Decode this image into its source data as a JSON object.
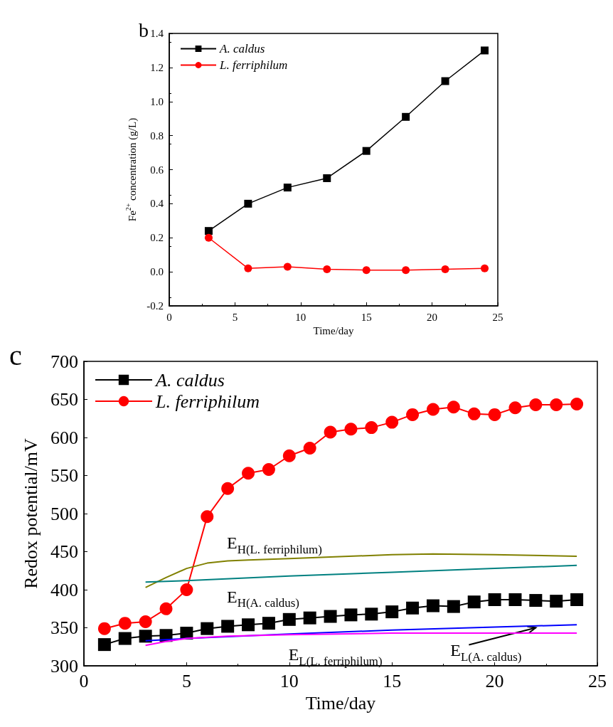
{
  "chart_data": [
    {
      "type": "line",
      "title": "b",
      "xlabel": "Time/day",
      "ylabel": "Fe$^{2+}$ concentration (g/L)",
      "x": [
        3,
        6,
        9,
        12,
        15,
        18,
        21,
        24
      ],
      "xlim": [
        0,
        25
      ],
      "xticks": [
        0,
        5,
        10,
        15,
        20,
        25
      ],
      "ylim": [
        -0.2,
        1.4
      ],
      "yticks": [
        -0.2,
        {
          "value": 0,
          "label": "0.0"
        },
        0.2,
        0.4,
        0.6,
        0.8,
        {
          "value": 1,
          "label": "1.0"
        },
        1.2,
        1.4
      ],
      "legend": "top left",
      "grid": false,
      "series": [
        {
          "name": "A. caldus",
          "color": "#000000",
          "marker": "square",
          "values": [
            0.24,
            0.4,
            0.495,
            0.55,
            0.71,
            0.91,
            1.12,
            1.3
          ]
        },
        {
          "name": "L. ferriphilum",
          "color": "#ff0000",
          "marker": "circle",
          "values": [
            0.2,
            0.02,
            0.03,
            0.015,
            0.01,
            0.01,
            0.015,
            0.02
          ]
        }
      ]
    },
    {
      "type": "line",
      "title": "c",
      "xlabel": "Time/day",
      "ylabel": "Redox potential/mV",
      "x": [
        1,
        2,
        3,
        4,
        5,
        6,
        7,
        8,
        9,
        10,
        11,
        12,
        13,
        14,
        15,
        16,
        17,
        18,
        19,
        20,
        21,
        22,
        23,
        24
      ],
      "xlim": [
        0,
        25
      ],
      "xticks": [
        0,
        5,
        10,
        15,
        20,
        25
      ],
      "ylim": [
        300,
        700
      ],
      "yticks": [
        300,
        350,
        400,
        450,
        500,
        550,
        600,
        650,
        700
      ],
      "legend": "top left",
      "grid": false,
      "series": [
        {
          "name": "A. caldus",
          "color": "#000000",
          "marker": "square",
          "values": [
            328,
            336,
            339,
            340,
            343,
            349,
            352,
            354,
            356,
            361,
            363,
            365,
            367,
            368,
            371,
            376,
            379,
            378,
            384,
            387,
            387,
            386,
            385,
            387
          ]
        },
        {
          "name": "L. ferriphilum",
          "color": "#ff0000",
          "marker": "circle",
          "values": [
            349,
            356,
            358,
            375,
            400,
            496,
            533,
            553,
            558,
            576,
            586,
            607,
            611,
            613,
            620,
            630,
            637,
            640,
            631,
            630,
            639,
            643,
            643,
            644
          ]
        },
        {
          "color": "#808000",
          "marker": "none",
          "x": [
            3,
            4,
            5,
            6,
            7,
            8,
            10,
            12,
            15,
            17,
            20,
            24
          ],
          "values": [
            403,
            416,
            428,
            435,
            438,
            439,
            441,
            443,
            446,
            447,
            446,
            444
          ]
        },
        {
          "color": "#008080",
          "marker": "none",
          "x": [
            3,
            5,
            10,
            15,
            20,
            24
          ],
          "values": [
            410,
            412,
            418,
            423,
            428,
            432
          ]
        },
        {
          "color": "#0000ff",
          "marker": "none",
          "x": [
            3,
            5,
            10,
            15,
            20,
            24
          ],
          "values": [
            333,
            336,
            342,
            347,
            351,
            354
          ]
        },
        {
          "color": "#ff00ff",
          "marker": "none",
          "x": [
            3,
            4,
            5,
            7,
            10,
            15,
            24
          ],
          "values": [
            327,
            332,
            336,
            339,
            341,
            343,
            343
          ]
        }
      ],
      "annotations": [
        {
          "text": "E$_{H(L. ferriphilum)}$",
          "x": 8,
          "y": 439
        },
        {
          "text": "E$_{H(A. caldus)}$",
          "x": 8,
          "y": 417
        },
        {
          "text": "E$_{L(L. ferriphilum)}$",
          "x": 11,
          "y": 341
        },
        {
          "text": "E$_{L(A. caldus)}$",
          "x": 22,
          "y": 352
        }
      ]
    }
  ]
}
